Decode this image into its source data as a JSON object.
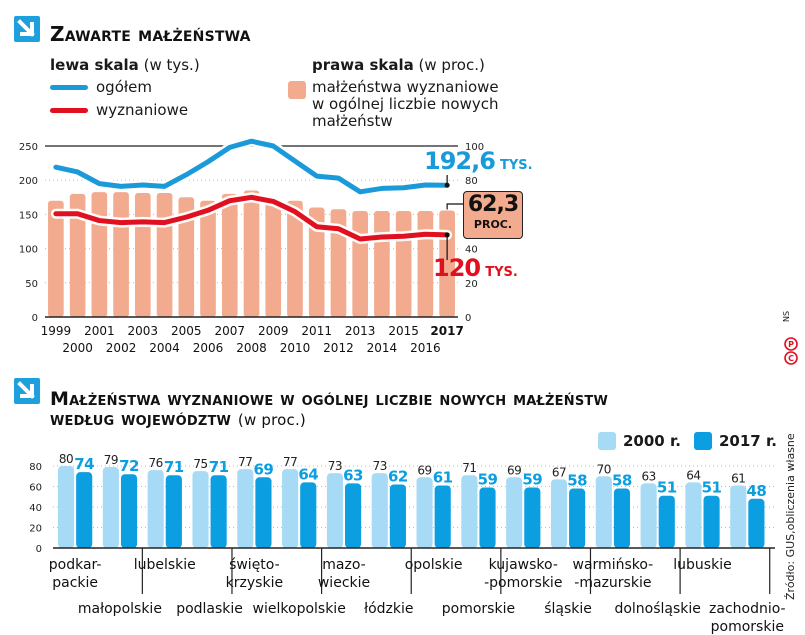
{
  "colors": {
    "accent": "#1ea0dc",
    "total_line": "#1a9ad8",
    "religious_line": "#e01020",
    "bars_pct": "#f2ab8e",
    "bar_2000": "#a7dbf5",
    "bar_2017": "#0b9ee0",
    "annotation_box": "#f2ab8e"
  },
  "top": {
    "title": "Zawarte małżeństwa",
    "left_scale_label": "lewa skala",
    "left_scale_unit": "(w tys.)",
    "legend_total": "ogółem",
    "legend_religious": "wyznaniowe",
    "right_scale_label": "prawa skala",
    "right_scale_unit": "(w proc.)",
    "legend_pct_lines": [
      "małżeństwa wyznaniowe",
      "w ogólnej liczbie nowych",
      "małżeństw"
    ],
    "annotation_total_value": "192,6",
    "annotation_total_unit": "TYS.",
    "annotation_pct_value": "62,3",
    "annotation_pct_unit": "PROC.",
    "annotation_religious_value": "120",
    "annotation_religious_unit": "TYS."
  },
  "bottom": {
    "title_main": "Małżeństwa wyznaniowe w ogólnej liczbie nowych małżeństw",
    "title_line2": "według województw",
    "title_unit": "(w proc.)",
    "legend_2000": "2000 r.",
    "legend_2017": "2017 r."
  },
  "source": "Źródło: GUS,obliczenia własne",
  "credit": "NS",
  "chart_data": [
    {
      "type": "line+bar",
      "title": "Zawarte małżeństwa",
      "categories": [
        "1999",
        "2000",
        "2001",
        "2002",
        "2003",
        "2004",
        "2005",
        "2006",
        "2007",
        "2008",
        "2009",
        "2010",
        "2011",
        "2012",
        "2013",
        "2014",
        "2015",
        "2016",
        "2017"
      ],
      "left_axis": {
        "label": "lewa skala (w tys.)",
        "ylim": [
          0,
          250
        ],
        "ticks": [
          "0",
          "50",
          "100",
          "150",
          "200",
          "250"
        ]
      },
      "right_axis": {
        "label": "prawa skala (w proc.)",
        "ylim": [
          0,
          100
        ],
        "ticks": [
          "0",
          "20",
          "40",
          "60",
          "80",
          "100"
        ]
      },
      "series": [
        {
          "name": "ogółem",
          "axis": "left",
          "type": "line",
          "values": [
            219,
            212,
            195,
            191,
            193,
            191,
            208,
            227,
            248,
            257,
            250,
            228,
            206,
            203,
            183,
            188,
            189,
            193,
            192.6
          ]
        },
        {
          "name": "wyznaniowe",
          "axis": "left",
          "type": "line",
          "values": [
            151,
            151,
            141,
            138,
            139,
            138,
            146,
            156,
            170,
            175,
            169,
            154,
            132,
            129,
            114,
            117,
            118,
            121,
            120
          ]
        },
        {
          "name": "małżeństwa wyznaniowe w ogólnej liczbie nowych małżeństw",
          "axis": "right",
          "type": "bar",
          "values": [
            68,
            72,
            73,
            73,
            72.5,
            72.5,
            70,
            68,
            72,
            74,
            69,
            68,
            64,
            63,
            62,
            62,
            62,
            62,
            62.3
          ]
        }
      ],
      "grid": true,
      "bold_category": "2017"
    },
    {
      "type": "bar",
      "title": "Małżeństwa wyznaniowe w ogólnej liczbie nowych małżeństw według województw (w proc.)",
      "ylim": [
        0,
        80
      ],
      "yticks": [
        "0",
        "20",
        "40",
        "60",
        "80"
      ],
      "categories": [
        "podkar-\npackie",
        "małopolskie",
        "lubelskie",
        "podlaskie",
        "świętokrzyskie",
        "wielkopolskie",
        "mazo-\nwieckie",
        "łódzkie",
        "opolskie",
        "pomorskie",
        "kujawsko-\n-pomorskie",
        "śląskie",
        "warmińsko-\n-mazurskie",
        "dolnośląskie",
        "lubuskie",
        "zachodnio-\npomorskie"
      ],
      "category_labels_top": [
        [
          "podkar-",
          "packie"
        ],
        [
          "lubelskie"
        ],
        [
          "świętokrzyskie_split"
        ],
        [
          "mazo-",
          "wieckie"
        ],
        [
          "opolskie"
        ],
        [
          "kujawsko-",
          "-pomorskie"
        ],
        [
          "warmińsko-",
          "-mazurskie"
        ],
        [
          "lubuskie"
        ]
      ],
      "label_rows": {
        "upper": [
          [
            "podkar-",
            "packie"
          ],
          [
            "lubelskie"
          ],
          [
            "świętokrzyskie_upper"
          ],
          [
            "mazo-",
            "wieckie"
          ],
          [
            "opolskie"
          ],
          [
            "kujawsko-",
            "-pomorskie"
          ],
          [
            "warmińsko-",
            "-mazurskie"
          ],
          [
            "lubuskie"
          ]
        ],
        "lower": [
          [
            "małopolskie"
          ],
          [
            "podlaskie"
          ],
          [
            "wielkopolskie"
          ],
          [
            "łódzkie"
          ],
          [
            "pomorskie"
          ],
          [
            "śląskie"
          ],
          [
            "dolnośląskie"
          ],
          [
            "zachodnio-",
            "pomorskie"
          ]
        ]
      },
      "swietokrzyskie_lines": [
        "świętokrzyskie_l1",
        "świętokrzyskie_l2"
      ],
      "swietokrzyskie_text": [
        "święto-",
        "krzyskie"
      ],
      "series": [
        {
          "name": "2000 r.",
          "values": [
            80,
            79,
            76,
            75,
            77,
            77,
            73,
            73,
            69,
            71,
            69,
            67,
            70,
            63,
            64,
            61
          ]
        },
        {
          "name": "2017 r.",
          "values": [
            74,
            72,
            71,
            71,
            69,
            64,
            63,
            62,
            61,
            59,
            59,
            58,
            58,
            51,
            51,
            48
          ]
        }
      ],
      "legend": "top-right",
      "grid": true
    }
  ]
}
